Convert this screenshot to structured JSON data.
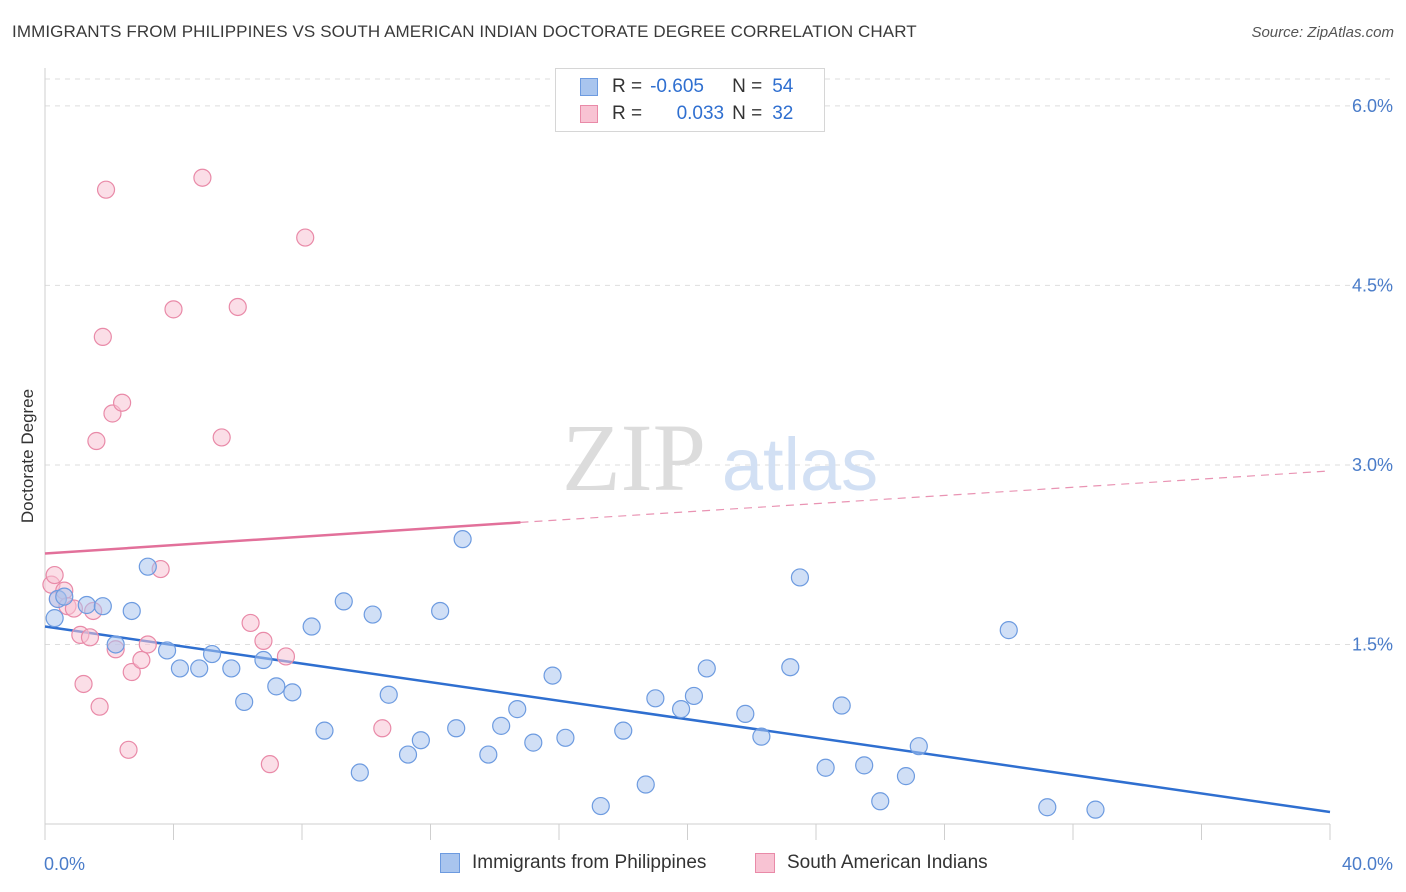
{
  "header": {
    "title": "IMMIGRANTS FROM PHILIPPINES VS SOUTH AMERICAN INDIAN DOCTORATE DEGREE CORRELATION CHART",
    "source": "Source: ZipAtlas.com"
  },
  "watermark": {
    "zip": "ZIP",
    "atlas": "atlas"
  },
  "legend": {
    "rows": [
      {
        "r_label": "R =",
        "r_value": "-0.605",
        "n_label": "N =",
        "n_value": "54",
        "color": "#a9c5ee",
        "border": "#6d9be0"
      },
      {
        "r_label": "R =",
        "r_value": "0.033",
        "n_label": "N =",
        "n_value": "32",
        "color": "#f8c3d3",
        "border": "#e98aa8"
      }
    ]
  },
  "bottom_legend": {
    "items": [
      {
        "label": "Immigrants from Philippines",
        "color": "#a9c5ee",
        "border": "#6d9be0"
      },
      {
        "label": "South American Indians",
        "color": "#f8c3d3",
        "border": "#e98aa8"
      }
    ]
  },
  "chart_data": {
    "type": "scatter",
    "title": "IMMIGRANTS FROM PHILIPPINES VS SOUTH AMERICAN INDIAN DOCTORATE DEGREE CORRELATION CHART",
    "xlabel": "",
    "ylabel": "Doctorate Degree",
    "xlim": [
      0,
      40
    ],
    "ylim": [
      0,
      6.3
    ],
    "x_tick_labels": [
      "0.0%",
      "40.0%"
    ],
    "y_ticks": [
      1.5,
      3.0,
      4.5,
      6.0
    ],
    "y_tick_labels": [
      "1.5%",
      "3.0%",
      "4.5%",
      "6.0%"
    ],
    "grid": true,
    "series": [
      {
        "name": "Immigrants from Philippines",
        "color": "#6d9be0",
        "fill": "#a9c5ee",
        "trend": {
          "x": [
            0,
            40
          ],
          "y": [
            1.65,
            0.1
          ],
          "color": "#2f6fd0",
          "style": "solid"
        },
        "points": [
          [
            0.3,
            1.72
          ],
          [
            0.4,
            1.88
          ],
          [
            0.6,
            1.9
          ],
          [
            1.3,
            1.83
          ],
          [
            1.8,
            1.82
          ],
          [
            2.2,
            1.5
          ],
          [
            2.7,
            1.78
          ],
          [
            3.2,
            2.15
          ],
          [
            3.8,
            1.45
          ],
          [
            4.2,
            1.3
          ],
          [
            4.8,
            1.3
          ],
          [
            5.2,
            1.42
          ],
          [
            5.8,
            1.3
          ],
          [
            6.2,
            1.02
          ],
          [
            6.8,
            1.37
          ],
          [
            7.2,
            1.15
          ],
          [
            7.7,
            1.1
          ],
          [
            8.3,
            1.65
          ],
          [
            8.7,
            0.78
          ],
          [
            9.3,
            1.86
          ],
          [
            9.8,
            0.43
          ],
          [
            10.2,
            1.75
          ],
          [
            10.7,
            1.08
          ],
          [
            11.3,
            0.58
          ],
          [
            11.7,
            0.7
          ],
          [
            12.3,
            1.78
          ],
          [
            12.8,
            0.8
          ],
          [
            13.0,
            2.38
          ],
          [
            13.8,
            0.58
          ],
          [
            14.2,
            0.82
          ],
          [
            14.7,
            0.96
          ],
          [
            15.2,
            0.68
          ],
          [
            15.8,
            1.24
          ],
          [
            16.2,
            0.72
          ],
          [
            17.3,
            0.15
          ],
          [
            18.0,
            0.78
          ],
          [
            18.7,
            0.33
          ],
          [
            19.0,
            1.05
          ],
          [
            19.8,
            0.96
          ],
          [
            20.2,
            1.07
          ],
          [
            20.6,
            1.3
          ],
          [
            21.8,
            0.92
          ],
          [
            22.3,
            0.73
          ],
          [
            23.2,
            1.31
          ],
          [
            23.5,
            2.06
          ],
          [
            24.3,
            0.47
          ],
          [
            24.8,
            0.99
          ],
          [
            25.5,
            0.49
          ],
          [
            26.0,
            0.19
          ],
          [
            26.8,
            0.4
          ],
          [
            27.2,
            0.65
          ],
          [
            30.0,
            1.62
          ],
          [
            31.2,
            0.14
          ],
          [
            32.7,
            0.12
          ]
        ]
      },
      {
        "name": "South American Indians",
        "color": "#e98aa8",
        "fill": "#f8c3d3",
        "trend": {
          "x": [
            0,
            14.8
          ],
          "y": [
            2.26,
            2.52
          ],
          "color": "#e2709a",
          "style": "solid",
          "extension": {
            "x": [
              14.8,
              40
            ],
            "y": [
              2.52,
              2.95
            ],
            "style": "dashed"
          }
        },
        "points": [
          [
            0.2,
            2.0
          ],
          [
            0.3,
            2.08
          ],
          [
            0.4,
            1.88
          ],
          [
            0.6,
            1.95
          ],
          [
            0.7,
            1.82
          ],
          [
            0.9,
            1.8
          ],
          [
            1.1,
            1.58
          ],
          [
            1.2,
            1.17
          ],
          [
            1.4,
            1.56
          ],
          [
            1.5,
            1.78
          ],
          [
            1.6,
            3.2
          ],
          [
            1.7,
            0.98
          ],
          [
            1.8,
            4.07
          ],
          [
            1.9,
            5.3
          ],
          [
            2.1,
            3.43
          ],
          [
            2.2,
            1.46
          ],
          [
            2.4,
            3.52
          ],
          [
            2.6,
            0.62
          ],
          [
            2.7,
            1.27
          ],
          [
            3.0,
            1.37
          ],
          [
            3.2,
            1.5
          ],
          [
            3.6,
            2.13
          ],
          [
            4.0,
            4.3
          ],
          [
            4.9,
            5.4
          ],
          [
            5.5,
            3.23
          ],
          [
            6.0,
            4.32
          ],
          [
            6.4,
            1.68
          ],
          [
            6.8,
            1.53
          ],
          [
            7.0,
            0.5
          ],
          [
            7.5,
            1.4
          ],
          [
            8.1,
            4.9
          ],
          [
            10.5,
            0.8
          ]
        ]
      }
    ]
  }
}
